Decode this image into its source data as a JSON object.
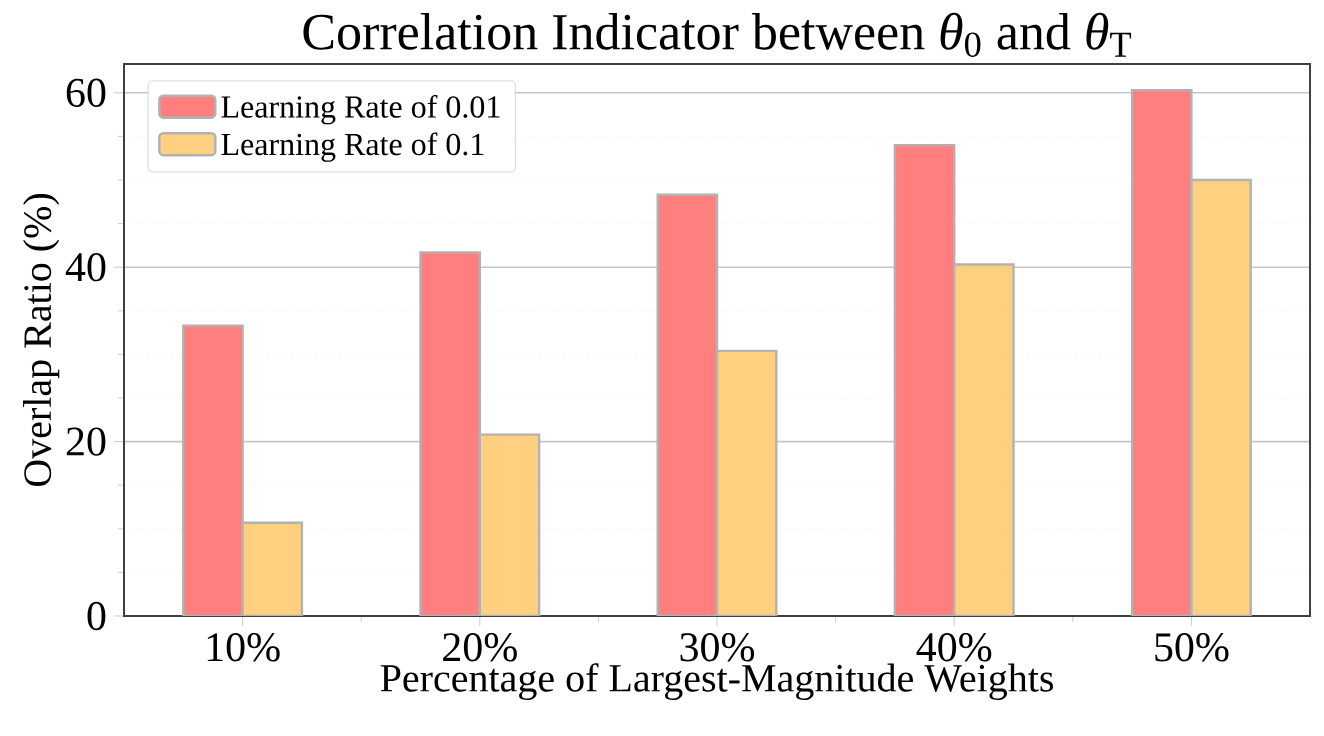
{
  "chart_data": {
    "type": "bar",
    "title": "Correlation Indicator between *θ*$_{0}$ and *θ*$_{T}$",
    "xlabel": "Percentage of Largest-Magnitude Weights",
    "ylabel": "Overlap Ratio (%)",
    "categories": [
      "10%",
      "20%",
      "30%",
      "40%",
      "50%"
    ],
    "series": [
      {
        "name": "Learning Rate of 0.01",
        "color": "#ff7f7f",
        "values": [
          33.3,
          41.7,
          48.3,
          54.0,
          60.3
        ]
      },
      {
        "name": "Learning Rate of 0.1",
        "color": "#ffd07f",
        "values": [
          10.7,
          20.8,
          30.4,
          40.3,
          50.0
        ]
      }
    ],
    "ylim": [
      0,
      63.3
    ],
    "yticks": [
      0,
      20,
      40,
      60
    ],
    "grid": "y",
    "legend": "top left"
  }
}
